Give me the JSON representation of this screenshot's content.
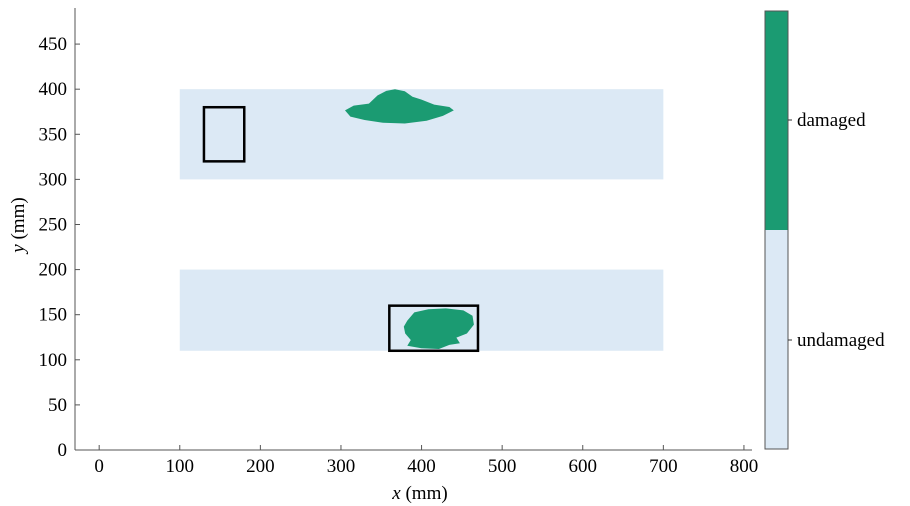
{
  "chart_data": {
    "type": "heatmap",
    "title": "",
    "xlabel": {
      "var": "x",
      "unit": " (mm)"
    },
    "ylabel": {
      "var": "y",
      "unit": " (mm)"
    },
    "xlim": [
      -30,
      810
    ],
    "ylim": [
      0,
      490
    ],
    "x_ticks": [
      0,
      100,
      200,
      300,
      400,
      500,
      600,
      700,
      800
    ],
    "y_ticks": [
      0,
      50,
      100,
      150,
      200,
      250,
      300,
      350,
      400,
      450
    ],
    "grid": false,
    "colors": {
      "undamaged": "#dce9f5",
      "damaged": "#1b9b72",
      "frame": "#000000"
    },
    "panels": [
      {
        "name": "upper panel",
        "x": [
          100,
          700
        ],
        "y": [
          300,
          400
        ]
      },
      {
        "name": "lower panel",
        "x": [
          100,
          700
        ],
        "y": [
          110,
          200
        ]
      }
    ],
    "damage_regions": [
      {
        "name": "upper damage",
        "x": [
          305,
          440
        ],
        "y": [
          362,
          400
        ]
      },
      {
        "name": "lower damage",
        "x": [
          378,
          465
        ],
        "y": [
          112,
          157
        ]
      }
    ],
    "outline_boxes": [
      {
        "name": "upper box",
        "x": [
          130,
          180
        ],
        "y": [
          320,
          380
        ]
      },
      {
        "name": "lower box",
        "x": [
          360,
          470
        ],
        "y": [
          110,
          160
        ]
      }
    ],
    "colorbar": {
      "categories": [
        {
          "label": "damaged",
          "color": "#1b9b72"
        },
        {
          "label": "undamaged",
          "color": "#dce9f5"
        }
      ],
      "split_fraction": 0.5
    }
  }
}
